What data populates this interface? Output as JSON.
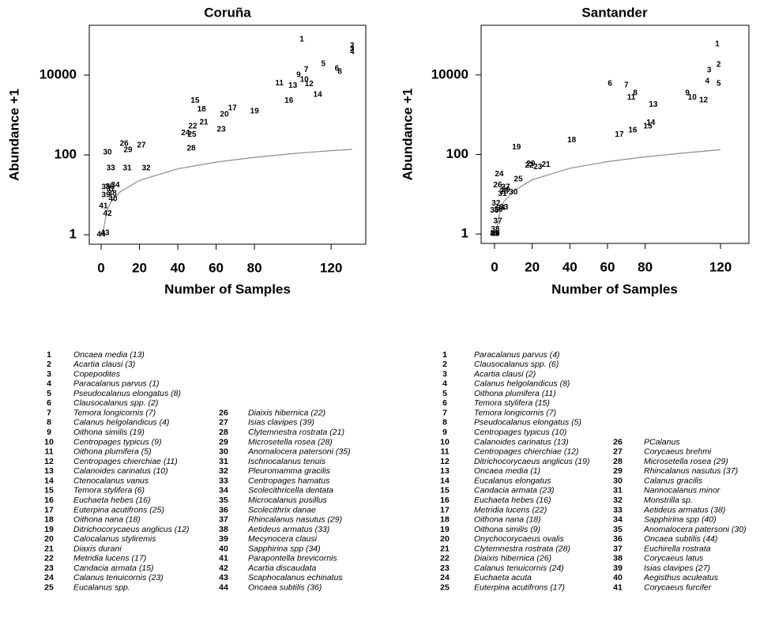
{
  "chart_data": [
    {
      "type": "scatter",
      "title": "Coruña",
      "xlabel": "Number of Samples",
      "ylabel": "Abundance +1",
      "xlim": [
        -6.2,
        138.1
      ],
      "ylim": [
        0.58,
        177000
      ],
      "log_y": true,
      "xticks": [
        0,
        20,
        40,
        60,
        80,
        120
      ],
      "yticks": [
        1,
        100,
        10000
      ],
      "x": [
        104.7,
        131,
        131,
        131,
        116,
        123,
        107,
        124.5,
        103,
        106,
        93,
        108.5,
        100,
        113,
        49,
        98,
        68.5,
        52.4,
        80,
        64.3,
        53.6,
        47.8,
        62.7,
        44,
        47.4,
        12,
        21,
        47,
        14,
        3.3,
        13.6,
        23.5,
        5,
        7.4,
        2.5,
        4.5,
        5,
        5.8,
        2.5,
        6.2,
        1.2,
        3.3,
        2,
        0
      ],
      "y": [
        78000,
        54000,
        45000,
        37500,
        19000,
        14500,
        13700,
        12000,
        10000,
        7600,
        6300,
        6000,
        5500,
        3200,
        2300,
        2300,
        1480,
        1400,
        1230,
        1020,
        650,
        515,
        430,
        357,
        326,
        190,
        173,
        144,
        132,
        115,
        46,
        46,
        46,
        17.6,
        15.4,
        16,
        14,
        10.7,
        9.8,
        7.8,
        5.2,
        3.4,
        1.1,
        1
      ],
      "curve": {
        "color": "#8c8c8c",
        "x": [
          1,
          3,
          5,
          10,
          20,
          40,
          60,
          80,
          100,
          120,
          131
        ],
        "y": [
          1.2,
          4,
          6.5,
          12,
          23,
          45,
          66,
          87,
          108,
          128,
          138
        ]
      },
      "species": [
        {
          "id": "1",
          "name": "Oncaea media (13)"
        },
        {
          "id": "2",
          "name": "Acartia clausi (3)"
        },
        {
          "id": "3",
          "name": "Copepodites"
        },
        {
          "id": "4",
          "name": "Paracalanus parvus (1)"
        },
        {
          "id": "5",
          "name": "Pseudocalanus elongatus (8)"
        },
        {
          "id": "6",
          "name": "Clausocalanus spp. (2)"
        },
        {
          "id": "7",
          "name": "Temora longicornis (7)"
        },
        {
          "id": "8",
          "name": "Calanus helgolandicus (4)"
        },
        {
          "id": "9",
          "name": "Oithona similis (19)"
        },
        {
          "id": "10",
          "name": "Centropages typicus (9)"
        },
        {
          "id": "11",
          "name": "Oithona plumifera (5)"
        },
        {
          "id": "12",
          "name": "Centropages chierchiae (11)"
        },
        {
          "id": "13",
          "name": "Calanoides carinatus (10)"
        },
        {
          "id": "14",
          "name": "Ctenocalanus vanus"
        },
        {
          "id": "15",
          "name": "Temora stylifera (6)"
        },
        {
          "id": "16",
          "name": "Euchaeta hebes (16)"
        },
        {
          "id": "17",
          "name": "Euterpina acutifrons (25)"
        },
        {
          "id": "18",
          "name": "Oithona nana (18)"
        },
        {
          "id": "19",
          "name": "Ditrichocorycaeus anglicus (12)"
        },
        {
          "id": "20",
          "name": "Calocalanus styliremis"
        },
        {
          "id": "21",
          "name": "Diaxis durani"
        },
        {
          "id": "22",
          "name": "Metridia lucens (17)"
        },
        {
          "id": "23",
          "name": "Candacia armata (15)"
        },
        {
          "id": "24",
          "name": "Calanus tenuicornis (23)"
        },
        {
          "id": "25",
          "name": "Eucalanus spp."
        },
        {
          "id": "26",
          "name": "Diaixis hibernica (22)"
        },
        {
          "id": "27",
          "name": "Isias clavipes (39)"
        },
        {
          "id": "28",
          "name": "Clytemnestra rostrata (21)"
        },
        {
          "id": "29",
          "name": "Microsetella rosea (28)"
        },
        {
          "id": "30",
          "name": "Anomalocera patersoni (35)"
        },
        {
          "id": "31",
          "name": "Ischnocalanus tenuis"
        },
        {
          "id": "32",
          "name": "Pleuromamma gracilis"
        },
        {
          "id": "33",
          "name": "Centropages hamatus"
        },
        {
          "id": "34",
          "name": "Scolecithricella dentata"
        },
        {
          "id": "35",
          "name": "Microcalanus pusillus"
        },
        {
          "id": "36",
          "name": "Scolecithrix danae"
        },
        {
          "id": "37",
          "name": "Rhincalanus nasutus (29)"
        },
        {
          "id": "38",
          "name": "Aetideus armatus (33)"
        },
        {
          "id": "39",
          "name": "Mecynocera clausi"
        },
        {
          "id": "40",
          "name": "Sapphirina spp (34)"
        },
        {
          "id": "41",
          "name": "Parapontella brevicornis"
        },
        {
          "id": "42",
          "name": "Acartia discaudata"
        },
        {
          "id": "43",
          "name": "Scaphocalanus echinatus"
        },
        {
          "id": "44",
          "name": "Oncaea subtilis (36)"
        }
      ]
    },
    {
      "type": "scatter",
      "title": "Santander",
      "xlabel": "Number of Samples",
      "ylabel": "Abundance +1",
      "xlim": [
        -7.1,
        135.1
      ],
      "ylim": [
        0.58,
        177000
      ],
      "log_y": true,
      "xticks": [
        0,
        20,
        40,
        60,
        80,
        120
      ],
      "yticks": [
        1,
        100,
        10000
      ],
      "x": [
        118.3,
        119,
        114,
        113,
        119,
        61.3,
        70,
        74.7,
        102.4,
        105,
        72.6,
        111,
        84.3,
        83,
        81.4,
        73.4,
        66.3,
        41,
        11.7,
        19.3,
        27.3,
        18.5,
        23,
        2.5,
        12.6,
        1.7,
        5.9,
        5,
        5.9,
        10,
        4.2,
        0.8,
        5,
        3.4,
        0,
        2.1,
        1.7,
        0.4,
        0,
        0.5,
        0
      ],
      "y": [
        59000,
        18000,
        13200,
        6900,
        6000,
        6000,
        5500,
        3500,
        3500,
        2700,
        2700,
        2300,
        1800,
        620,
        515,
        410,
        315,
        228,
        150,
        58,
        55,
        53,
        48,
        32,
        24,
        17,
        15,
        11.7,
        12.8,
        11.2,
        10.2,
        5.9,
        4.7,
        4.5,
        3.9,
        4.1,
        2.1,
        1.3,
        1,
        1,
        1
      ],
      "curve": {
        "color": "#8c8c8c",
        "x": [
          1,
          3,
          5,
          10,
          20,
          40,
          60,
          80,
          100,
          120
        ],
        "y": [
          1.2,
          4,
          6.5,
          12,
          23,
          45,
          66,
          87,
          108,
          132
        ]
      },
      "species": [
        {
          "id": "1",
          "name": "Paracalanus parvus (4)"
        },
        {
          "id": "2",
          "name": "Clausocalanus spp. (6)"
        },
        {
          "id": "3",
          "name": "Acartia clausi (2)"
        },
        {
          "id": "4",
          "name": "Calanus helgolandicus (8)"
        },
        {
          "id": "5",
          "name": "Oithona plumifera (11)"
        },
        {
          "id": "6",
          "name": "Temora stylifera (15)"
        },
        {
          "id": "7",
          "name": "Temora longicornis (7)"
        },
        {
          "id": "8",
          "name": "Pseudocalanus elongatus (5)"
        },
        {
          "id": "9",
          "name": "Centropages typicus (10)"
        },
        {
          "id": "10",
          "name": "Calanoides carinatus (13)"
        },
        {
          "id": "11",
          "name": "Centropages chierchiae (12)"
        },
        {
          "id": "12",
          "name": "Ditrichocorycaeus anglicus (19)"
        },
        {
          "id": "13",
          "name": "Oncaea media (1)"
        },
        {
          "id": "14",
          "name": "Eucalanus elongatus"
        },
        {
          "id": "15",
          "name": "Candacia armata (23)"
        },
        {
          "id": "16",
          "name": "Euchaeta hebes (16)"
        },
        {
          "id": "17",
          "name": "Metridia lucens (22)"
        },
        {
          "id": "18",
          "name": "Oithona nana (18)"
        },
        {
          "id": "19",
          "name": "Oithona similis (9)"
        },
        {
          "id": "20",
          "name": "Onychocorycaeus ovalis"
        },
        {
          "id": "21",
          "name": "Clytemnestra rostrata (28)"
        },
        {
          "id": "22",
          "name": "Diaixis hibernica (26)"
        },
        {
          "id": "23",
          "name": "Calanus tenuicornis (24)"
        },
        {
          "id": "24",
          "name": "Euchaeta acuta"
        },
        {
          "id": "25",
          "name": "Euterpina acutifrons (17)"
        },
        {
          "id": "26",
          "name": "PCalanus"
        },
        {
          "id": "27",
          "name": "Corycaeus brehmi"
        },
        {
          "id": "28",
          "name": "Microsetella rosea (29)"
        },
        {
          "id": "29",
          "name": "Rhincalanus nasutus (37)"
        },
        {
          "id": "30",
          "name": "Calanus gracilis"
        },
        {
          "id": "31",
          "name": "Nannocalanus minor"
        },
        {
          "id": "32",
          "name": "Monstrilla sp."
        },
        {
          "id": "33",
          "name": "Aetideus armatus (38)"
        },
        {
          "id": "34",
          "name": "Sapphirina spp (40)"
        },
        {
          "id": "35",
          "name": "Anomalocera patersoni (30)"
        },
        {
          "id": "36",
          "name": "Oncaea subtilis (44)"
        },
        {
          "id": "37",
          "name": "Euchirella rostrata"
        },
        {
          "id": "38",
          "name": "Corycaeus latus"
        },
        {
          "id": "39",
          "name": "Isias clavipes (27)"
        },
        {
          "id": "40",
          "name": "Aegisthus aculeatus"
        },
        {
          "id": "41",
          "name": "Corycaeus furcifer"
        }
      ]
    }
  ]
}
